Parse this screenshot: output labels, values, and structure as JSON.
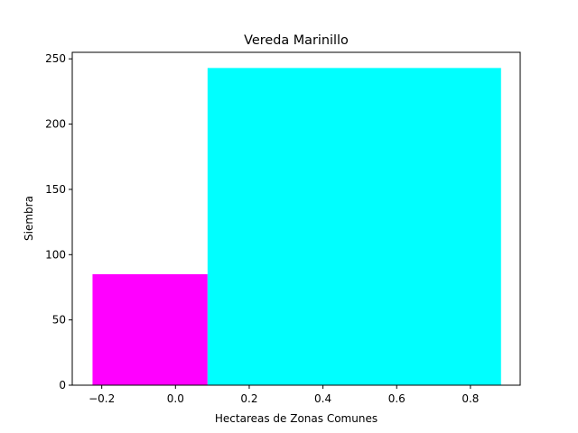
{
  "chart_data": {
    "type": "bar",
    "title": "Vereda Marinillo",
    "xlabel": "Hectareas de Zonas Comunes",
    "ylabel": "Siembra",
    "xlim": [
      -0.28,
      0.935
    ],
    "ylim": [
      0,
      255
    ],
    "xticks": [
      -0.2,
      0.0,
      0.2,
      0.4,
      0.6,
      0.8
    ],
    "xtick_labels": [
      "−0.2",
      "0.0",
      "0.2",
      "0.4",
      "0.6",
      "0.8"
    ],
    "yticks": [
      0,
      50,
      100,
      150,
      200,
      250
    ],
    "ytick_labels": [
      "0",
      "50",
      "100",
      "150",
      "200",
      "250"
    ],
    "grid": false,
    "bars": [
      {
        "x_start": -0.225,
        "x_end": 0.087,
        "value": 85,
        "color": "#ff00ff"
      },
      {
        "x_start": 0.087,
        "x_end": 0.883,
        "value": 243,
        "color": "#00ffff"
      }
    ]
  }
}
